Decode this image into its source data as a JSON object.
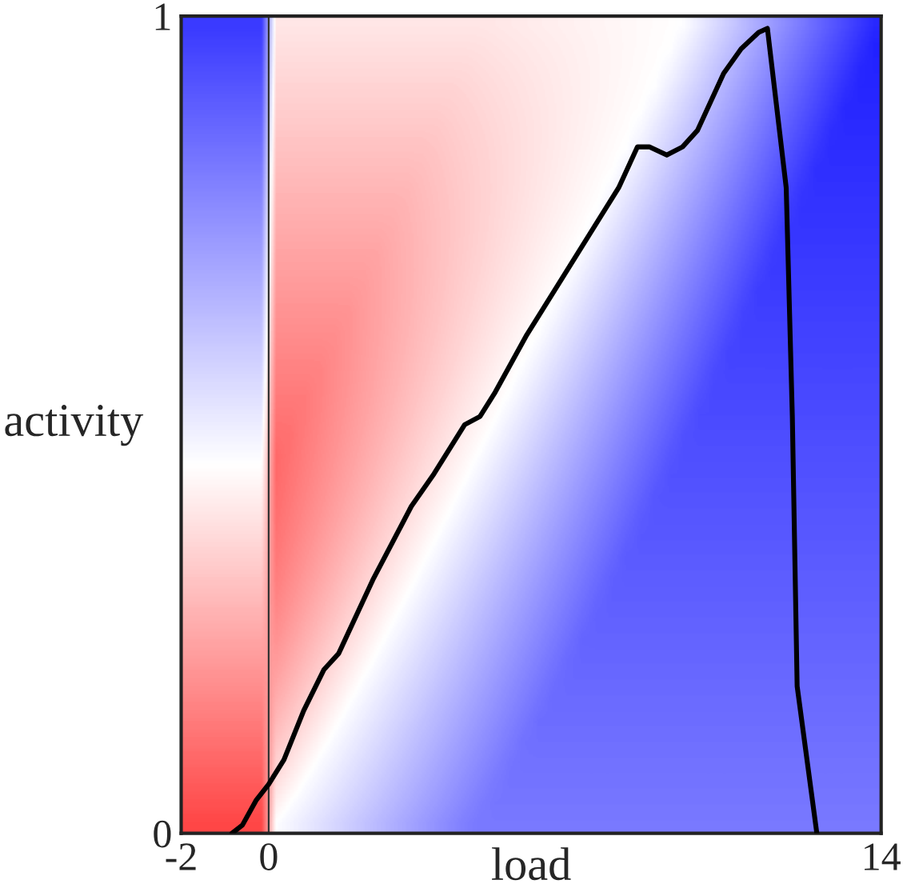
{
  "chart_data": {
    "type": "line",
    "xlabel": "load",
    "ylabel": "activity",
    "xlim": [
      -2,
      14
    ],
    "ylim": [
      0,
      1
    ],
    "xticks": [
      -2,
      0,
      14
    ],
    "yticks": [
      0,
      1
    ],
    "grid": false,
    "ref_lines": [
      {
        "axis": "x",
        "value": 0,
        "color": "#333333"
      }
    ],
    "series": [
      {
        "color": "#000000",
        "x": [
          -0.84,
          -0.6,
          -0.29,
          0,
          0.35,
          0.8,
          1.26,
          1.6,
          2.38,
          3.26,
          3.78,
          4.48,
          4.83,
          5.18,
          5.9,
          6.95,
          8.0,
          8.43,
          8.7,
          9.1,
          9.46,
          9.8,
          10.4,
          10.8,
          11.2,
          11.4,
          11.83,
          11.97,
          12.08,
          12.53
        ],
        "values": [
          0,
          0.01,
          0.04,
          0.06,
          0.09,
          0.15,
          0.2,
          0.22,
          0.31,
          0.4,
          0.44,
          0.5,
          0.51,
          0.54,
          0.61,
          0.7,
          0.79,
          0.84,
          0.84,
          0.83,
          0.84,
          0.86,
          0.93,
          0.96,
          0.98,
          0.985,
          0.79,
          0.51,
          0.18,
          0
        ]
      }
    ]
  }
}
